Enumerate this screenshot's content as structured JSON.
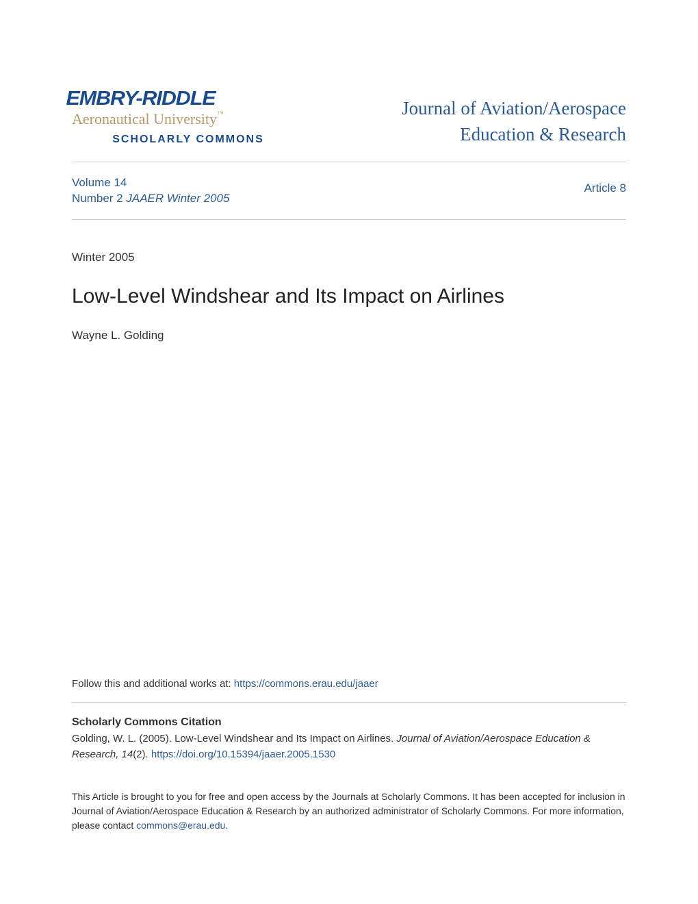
{
  "logo": {
    "main": "EMBRY-RIDDLE",
    "sub": "Aeronautical University",
    "tm": "™",
    "scholarly": "SCHOLARLY COMMONS"
  },
  "journal_title_line1": "Journal of Aviation/Aerospace",
  "journal_title_line2": "Education & Research",
  "volume": {
    "volume_label": "Volume 14",
    "number_label": "Number 2",
    "issue_name": "JAAER Winter 2005"
  },
  "article_number": "Article 8",
  "date": "Winter 2005",
  "article_title": "Low-Level Windshear and Its Impact on Airlines",
  "author": "Wayne L. Golding",
  "follow": {
    "prefix": "Follow this and additional works at: ",
    "url": "https://commons.erau.edu/jaaer"
  },
  "citation": {
    "heading": "Scholarly Commons Citation",
    "text_prefix": "Golding, W. L. (2005). Low-Level Windshear and Its Impact on Airlines. ",
    "journal": "Journal of Aviation/Aerospace Education & Research, 14",
    "issue": "(2). ",
    "doi": "https://doi.org/10.15394/jaaer.2005.1530"
  },
  "access": {
    "text_prefix": "This Article is brought to you for free and open access by the Journals at Scholarly Commons. It has been accepted for inclusion in Journal of Aviation/Aerospace Education & Research by an authorized administrator of Scholarly Commons. For more information, please contact ",
    "email": "commons@erau.edu",
    "suffix": "."
  },
  "colors": {
    "link": "#2c5a8f",
    "logo_blue": "#1a4b8c",
    "logo_tan": "#b89968",
    "text": "#333333",
    "divider": "#cccccc"
  }
}
